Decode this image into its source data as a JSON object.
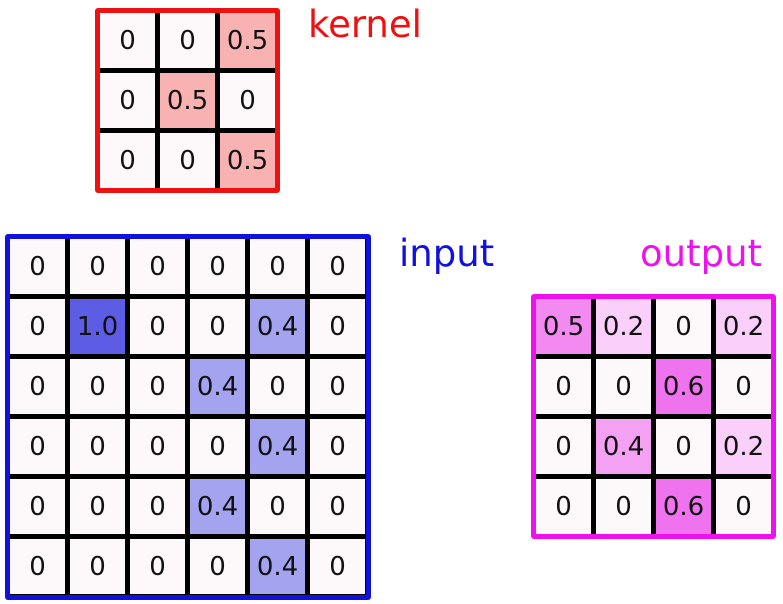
{
  "kernel": {
    "label": "kernel",
    "color": "#ee1111",
    "fill": "#ee2222",
    "values": [
      [
        "0",
        "0",
        "0.5"
      ],
      [
        "0",
        "0.5",
        "0"
      ],
      [
        "0",
        "0",
        "0.5"
      ]
    ]
  },
  "input": {
    "label": "input",
    "color": "#1111dd",
    "fill": "#3333dd",
    "values": [
      [
        "0",
        "0",
        "0",
        "0",
        "0",
        "0"
      ],
      [
        "0",
        "1.0",
        "0",
        "0",
        "0.4",
        "0"
      ],
      [
        "0",
        "0",
        "0",
        "0.4",
        "0",
        "0"
      ],
      [
        "0",
        "0",
        "0",
        "0",
        "0.4",
        "0"
      ],
      [
        "0",
        "0",
        "0",
        "0.4",
        "0",
        "0"
      ],
      [
        "0",
        "0",
        "0",
        "0",
        "0.4",
        "0"
      ]
    ]
  },
  "output": {
    "label": "output",
    "color": "#ee11ee",
    "fill": "#e833e8",
    "values": [
      [
        "0.5",
        "0.2",
        "0",
        "0.2"
      ],
      [
        "0",
        "0",
        "0.6",
        "0"
      ],
      [
        "0",
        "0.4",
        "0",
        "0.2"
      ],
      [
        "0",
        "0",
        "0.6",
        "0"
      ]
    ]
  }
}
